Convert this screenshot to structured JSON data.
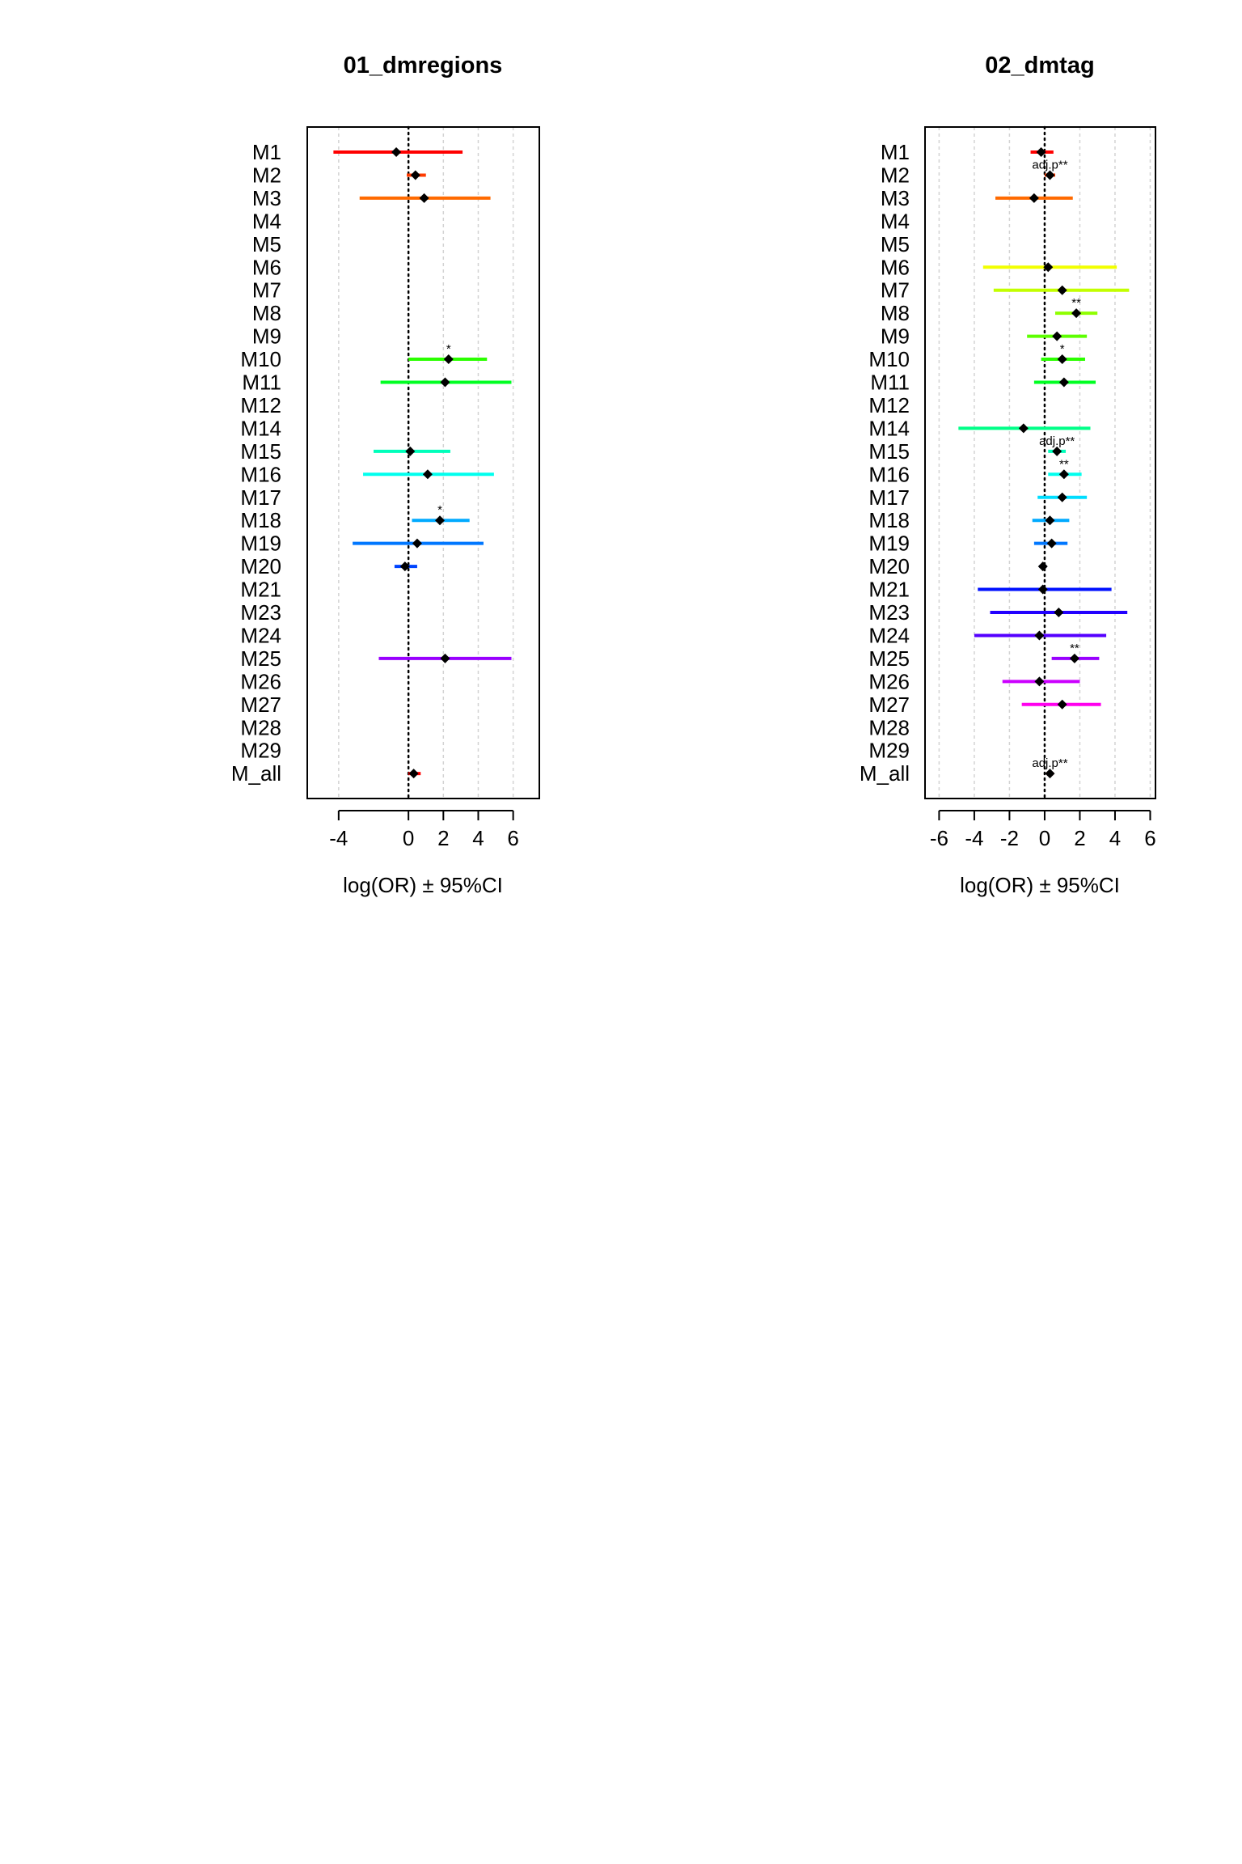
{
  "chart_data": [
    {
      "type": "forest",
      "title": "01_dmregions",
      "xlabel": "log(OR) ± 95%CI",
      "xlim": [
        -5.8,
        7.5
      ],
      "xticks": [
        -4,
        0,
        2,
        4,
        6
      ],
      "categories": [
        "M1",
        "M2",
        "M3",
        "M4",
        "M5",
        "M6",
        "M7",
        "M8",
        "M9",
        "M10",
        "M11",
        "M12",
        "M14",
        "M15",
        "M16",
        "M17",
        "M18",
        "M19",
        "M20",
        "M21",
        "M23",
        "M24",
        "M25",
        "M26",
        "M27",
        "M28",
        "M29",
        "M_all"
      ],
      "rows": [
        {
          "label": "M1",
          "est": -0.7,
          "lo": -4.3,
          "hi": 3.1,
          "color": "#ff0000",
          "annot": ""
        },
        {
          "label": "M2",
          "est": 0.4,
          "lo": -0.1,
          "hi": 1.0,
          "color": "#ff3b00",
          "annot": ""
        },
        {
          "label": "M3",
          "est": 0.9,
          "lo": -2.8,
          "hi": 4.7,
          "color": "#ff6a00",
          "annot": ""
        },
        {
          "label": "M4",
          "est": null,
          "lo": null,
          "hi": null,
          "color": "#ff9900",
          "annot": ""
        },
        {
          "label": "M5",
          "est": null,
          "lo": null,
          "hi": null,
          "color": "#ffc800",
          "annot": ""
        },
        {
          "label": "M6",
          "est": null,
          "lo": null,
          "hi": null,
          "color": "#f2ff00",
          "annot": ""
        },
        {
          "label": "M7",
          "est": null,
          "lo": null,
          "hi": null,
          "color": "#c3ff00",
          "annot": ""
        },
        {
          "label": "M8",
          "est": null,
          "lo": null,
          "hi": null,
          "color": "#8fff00",
          "annot": ""
        },
        {
          "label": "M9",
          "est": null,
          "lo": null,
          "hi": null,
          "color": "#5dff00",
          "annot": ""
        },
        {
          "label": "M10",
          "est": 2.3,
          "lo": 0.0,
          "hi": 4.5,
          "color": "#2bff00",
          "annot": "*"
        },
        {
          "label": "M11",
          "est": 2.1,
          "lo": -1.6,
          "hi": 5.9,
          "color": "#00ff22",
          "annot": ""
        },
        {
          "label": "M12",
          "est": null,
          "lo": null,
          "hi": null,
          "color": "#00ff55",
          "annot": ""
        },
        {
          "label": "M14",
          "est": null,
          "lo": null,
          "hi": null,
          "color": "#00ff88",
          "annot": ""
        },
        {
          "label": "M15",
          "est": 0.1,
          "lo": -2.0,
          "hi": 2.4,
          "color": "#00ffbb",
          "annot": ""
        },
        {
          "label": "M16",
          "est": 1.1,
          "lo": -2.6,
          "hi": 4.9,
          "color": "#00ffee",
          "annot": ""
        },
        {
          "label": "M17",
          "est": null,
          "lo": null,
          "hi": null,
          "color": "#00ddff",
          "annot": ""
        },
        {
          "label": "M18",
          "est": 1.8,
          "lo": 0.2,
          "hi": 3.5,
          "color": "#00aaff",
          "annot": "*"
        },
        {
          "label": "M19",
          "est": 0.5,
          "lo": -3.2,
          "hi": 4.3,
          "color": "#0077ff",
          "annot": ""
        },
        {
          "label": "M20",
          "est": -0.2,
          "lo": -0.8,
          "hi": 0.5,
          "color": "#0044ff",
          "annot": ""
        },
        {
          "label": "M21",
          "est": null,
          "lo": null,
          "hi": null,
          "color": "#0011ff",
          "annot": ""
        },
        {
          "label": "M23",
          "est": null,
          "lo": null,
          "hi": null,
          "color": "#2200ff",
          "annot": ""
        },
        {
          "label": "M24",
          "est": null,
          "lo": null,
          "hi": null,
          "color": "#5500ff",
          "annot": ""
        },
        {
          "label": "M25",
          "est": 2.1,
          "lo": -1.7,
          "hi": 5.9,
          "color": "#9900ff",
          "annot": ""
        },
        {
          "label": "M26",
          "est": null,
          "lo": null,
          "hi": null,
          "color": "#cc00ff",
          "annot": ""
        },
        {
          "label": "M27",
          "est": null,
          "lo": null,
          "hi": null,
          "color": "#ff00ee",
          "annot": ""
        },
        {
          "label": "M28",
          "est": null,
          "lo": null,
          "hi": null,
          "color": "#ff00bb",
          "annot": ""
        },
        {
          "label": "M29",
          "est": null,
          "lo": null,
          "hi": null,
          "color": "#ff0088",
          "annot": ""
        },
        {
          "label": "M_all",
          "est": 0.3,
          "lo": 0.0,
          "hi": 0.7,
          "color": "#ff0000",
          "annot": ""
        }
      ]
    },
    {
      "type": "forest",
      "title": "02_dmtag",
      "xlabel": "log(OR) ± 95%CI",
      "xlim": [
        -6.8,
        6.3
      ],
      "xticks": [
        -6,
        -4,
        -2,
        0,
        2,
        4,
        6
      ],
      "categories": [
        "M1",
        "M2",
        "M3",
        "M4",
        "M5",
        "M6",
        "M7",
        "M8",
        "M9",
        "M10",
        "M11",
        "M12",
        "M14",
        "M15",
        "M16",
        "M17",
        "M18",
        "M19",
        "M20",
        "M21",
        "M23",
        "M24",
        "M25",
        "M26",
        "M27",
        "M28",
        "M29",
        "M_all"
      ],
      "rows": [
        {
          "label": "M1",
          "est": -0.2,
          "lo": -0.8,
          "hi": 0.5,
          "color": "#ff0000",
          "annot": ""
        },
        {
          "label": "M2",
          "est": 0.3,
          "lo": 0.0,
          "hi": 0.6,
          "color": "#ff3b00",
          "annot": "adj.p**"
        },
        {
          "label": "M3",
          "est": -0.6,
          "lo": -2.8,
          "hi": 1.6,
          "color": "#ff6a00",
          "annot": ""
        },
        {
          "label": "M4",
          "est": null,
          "lo": null,
          "hi": null,
          "color": "#ff9900",
          "annot": ""
        },
        {
          "label": "M5",
          "est": null,
          "lo": null,
          "hi": null,
          "color": "#ffc800",
          "annot": ""
        },
        {
          "label": "M6",
          "est": 0.2,
          "lo": -3.5,
          "hi": 4.1,
          "color": "#f2ff00",
          "annot": ""
        },
        {
          "label": "M7",
          "est": 1.0,
          "lo": -2.9,
          "hi": 4.8,
          "color": "#c3ff00",
          "annot": ""
        },
        {
          "label": "M8",
          "est": 1.8,
          "lo": 0.6,
          "hi": 3.0,
          "color": "#8fff00",
          "annot": "**"
        },
        {
          "label": "M9",
          "est": 0.7,
          "lo": -1.0,
          "hi": 2.4,
          "color": "#5dff00",
          "annot": ""
        },
        {
          "label": "M10",
          "est": 1.0,
          "lo": -0.2,
          "hi": 2.3,
          "color": "#2bff00",
          "annot": "*"
        },
        {
          "label": "M11",
          "est": 1.1,
          "lo": -0.6,
          "hi": 2.9,
          "color": "#00ff22",
          "annot": ""
        },
        {
          "label": "M12",
          "est": null,
          "lo": null,
          "hi": null,
          "color": "#00ff55",
          "annot": ""
        },
        {
          "label": "M14",
          "est": -1.2,
          "lo": -4.9,
          "hi": 2.6,
          "color": "#00ff88",
          "annot": ""
        },
        {
          "label": "M15",
          "est": 0.7,
          "lo": 0.2,
          "hi": 1.2,
          "color": "#00ffbb",
          "annot": "adj.p**"
        },
        {
          "label": "M16",
          "est": 1.1,
          "lo": 0.2,
          "hi": 2.1,
          "color": "#00ffee",
          "annot": "**"
        },
        {
          "label": "M17",
          "est": 1.0,
          "lo": -0.4,
          "hi": 2.4,
          "color": "#00ddff",
          "annot": ""
        },
        {
          "label": "M18",
          "est": 0.3,
          "lo": -0.7,
          "hi": 1.4,
          "color": "#00aaff",
          "annot": ""
        },
        {
          "label": "M19",
          "est": 0.4,
          "lo": -0.6,
          "hi": 1.3,
          "color": "#0077ff",
          "annot": ""
        },
        {
          "label": "M20",
          "est": -0.1,
          "lo": -0.3,
          "hi": 0.1,
          "color": "#0044ff",
          "annot": ""
        },
        {
          "label": "M21",
          "est": -0.1,
          "lo": -3.8,
          "hi": 3.8,
          "color": "#0011ff",
          "annot": ""
        },
        {
          "label": "M23",
          "est": 0.8,
          "lo": -3.1,
          "hi": 4.7,
          "color": "#2200ff",
          "annot": ""
        },
        {
          "label": "M24",
          "est": -0.3,
          "lo": -4.0,
          "hi": 3.5,
          "color": "#5500ff",
          "annot": ""
        },
        {
          "label": "M25",
          "est": 1.7,
          "lo": 0.4,
          "hi": 3.1,
          "color": "#9900ff",
          "annot": "**"
        },
        {
          "label": "M26",
          "est": -0.3,
          "lo": -2.4,
          "hi": 2.0,
          "color": "#cc00ff",
          "annot": ""
        },
        {
          "label": "M27",
          "est": 1.0,
          "lo": -1.3,
          "hi": 3.2,
          "color": "#ff00ee",
          "annot": ""
        },
        {
          "label": "M28",
          "est": null,
          "lo": null,
          "hi": null,
          "color": "#ff00bb",
          "annot": ""
        },
        {
          "label": "M29",
          "est": null,
          "lo": null,
          "hi": null,
          "color": "#ff0088",
          "annot": ""
        },
        {
          "label": "M_all",
          "est": 0.3,
          "lo": 0.1,
          "hi": 0.5,
          "color": "#ff0000",
          "annot": "adj.p**"
        }
      ]
    }
  ]
}
